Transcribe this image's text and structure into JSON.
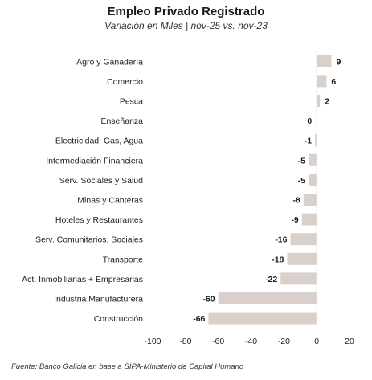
{
  "chart_data": {
    "type": "bar",
    "orientation": "horizontal",
    "title": "Empleo Privado Registrado",
    "subtitle": "Variación en Miles | nov-25 vs. nov-23",
    "categories": [
      "Agro y Ganadería",
      "Comercio",
      "Pesca",
      "Enseñanza",
      "Electricidad, Gas, Agua",
      "Intermediación Financiera",
      "Serv. Sociales y Salud",
      "Minas y Canteras",
      "Hoteles y Restaurantes",
      "Serv. Comunitarios, Sociales",
      "Transporte",
      "Act. Inmobiliarias + Empresarias",
      "Industria Manufacturera",
      "Construcción"
    ],
    "values": [
      9,
      6,
      2,
      0,
      -1,
      -5,
      -5,
      -8,
      -9,
      -16,
      -18,
      -22,
      -60,
      -66
    ],
    "xlim": [
      -100,
      20
    ],
    "xticks": [
      -100,
      -80,
      -60,
      -40,
      -20,
      0,
      20
    ],
    "grid": false,
    "bar_color": "#d9d0cb",
    "source": "Fuente: Banco Galicia en base a  SIPA-Ministerio de Capital Humano"
  }
}
